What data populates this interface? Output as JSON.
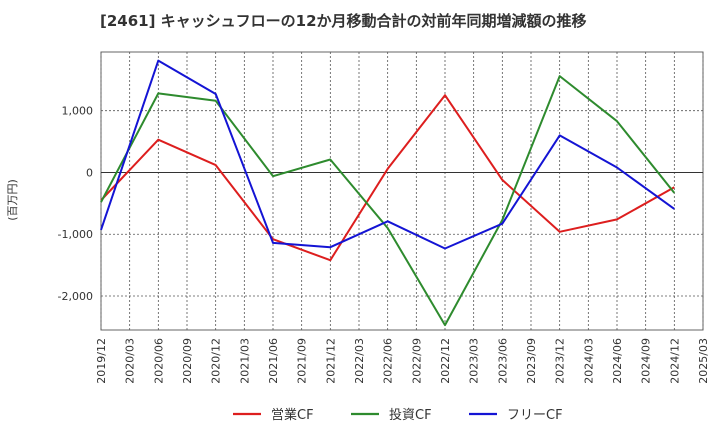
{
  "chart_data": {
    "type": "line",
    "title": "[2461]  キャッシュフローの12か月移動合計の対前年同期増減額の推移",
    "ylabel": "(百万円)",
    "xlabel": "",
    "ylim": [
      -2550,
      1950
    ],
    "yticks": [
      1000,
      0,
      -1000,
      -2000
    ],
    "ytick_labels": [
      "1,000",
      "0",
      "-1,000",
      "-2,000"
    ],
    "x_categories": [
      "2019/12",
      "2020/03",
      "2020/06",
      "2020/09",
      "2020/12",
      "2021/03",
      "2021/06",
      "2021/09",
      "2021/12",
      "2022/03",
      "2022/06",
      "2022/09",
      "2022/12",
      "2023/03",
      "2023/06",
      "2023/09",
      "2023/12",
      "2024/03",
      "2024/06",
      "2024/09",
      "2024/12",
      "2025/03"
    ],
    "series": [
      {
        "name": "営業CF",
        "color": "#dd1e1e",
        "points": [
          {
            "x": "2019/12",
            "y": -450
          },
          {
            "x": "2020/06",
            "y": 530
          },
          {
            "x": "2020/12",
            "y": 120
          },
          {
            "x": "2021/06",
            "y": -1080
          },
          {
            "x": "2021/12",
            "y": -1420
          },
          {
            "x": "2022/06",
            "y": 60
          },
          {
            "x": "2022/12",
            "y": 1250
          },
          {
            "x": "2023/06",
            "y": -120
          },
          {
            "x": "2023/12",
            "y": -960
          },
          {
            "x": "2024/06",
            "y": -760
          },
          {
            "x": "2024/12",
            "y": -240
          }
        ]
      },
      {
        "name": "投資CF",
        "color": "#2e8b2e",
        "points": [
          {
            "x": "2019/12",
            "y": -480
          },
          {
            "x": "2020/06",
            "y": 1280
          },
          {
            "x": "2020/12",
            "y": 1160
          },
          {
            "x": "2021/06",
            "y": -60
          },
          {
            "x": "2021/12",
            "y": 210
          },
          {
            "x": "2022/06",
            "y": -900
          },
          {
            "x": "2022/12",
            "y": -2470
          },
          {
            "x": "2023/06",
            "y": -770
          },
          {
            "x": "2023/12",
            "y": 1560
          },
          {
            "x": "2024/06",
            "y": 830
          },
          {
            "x": "2024/12",
            "y": -330
          }
        ]
      },
      {
        "name": "フリーCF",
        "color": "#1414d4",
        "points": [
          {
            "x": "2019/12",
            "y": -930
          },
          {
            "x": "2020/06",
            "y": 1810
          },
          {
            "x": "2020/12",
            "y": 1270
          },
          {
            "x": "2021/06",
            "y": -1140
          },
          {
            "x": "2021/12",
            "y": -1210
          },
          {
            "x": "2022/06",
            "y": -790
          },
          {
            "x": "2022/12",
            "y": -1230
          },
          {
            "x": "2023/06",
            "y": -830
          },
          {
            "x": "2023/12",
            "y": 600
          },
          {
            "x": "2024/06",
            "y": 80
          },
          {
            "x": "2024/12",
            "y": -590
          }
        ]
      }
    ],
    "legend_position": "bottom-center",
    "grid": true
  }
}
